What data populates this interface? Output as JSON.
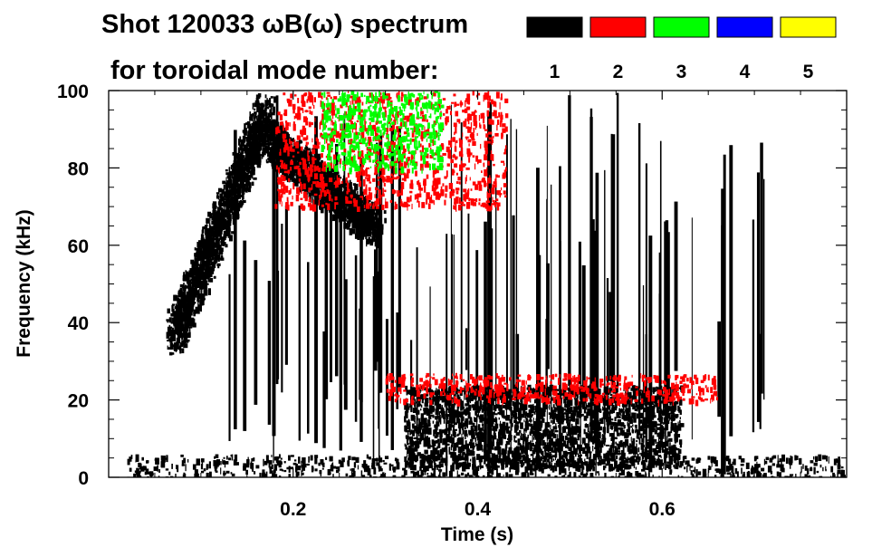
{
  "chart_data": {
    "type": "heatmap",
    "title_line1": "Shot 120033 ωB(ω) spectrum",
    "title_line2": "for toroidal mode number:",
    "xlabel": "Time (s)",
    "ylabel": "Frequency (kHz)",
    "xlim": [
      0.0,
      0.8
    ],
    "ylim": [
      0,
      100
    ],
    "x_ticks": [
      0.2,
      0.4,
      0.6
    ],
    "x_tick_labels": [
      "0.2",
      "0.4",
      "0.6"
    ],
    "y_ticks": [
      0,
      20,
      40,
      60,
      80,
      100
    ],
    "y_tick_labels": [
      "0",
      "20",
      "40",
      "60",
      "80",
      "100"
    ],
    "legend": [
      {
        "label": "1",
        "color": "#000000"
      },
      {
        "label": "2",
        "color": "#ff0000"
      },
      {
        "label": "3",
        "color": "#00ff00"
      },
      {
        "label": "4",
        "color": "#0000ff"
      },
      {
        "label": "5",
        "color": "#ffff00"
      }
    ],
    "legend_placement": "top-right",
    "features": [
      {
        "mode": "1",
        "kind": "chirp",
        "from": [
          0.07,
          37
        ],
        "to": [
          0.17,
          95
        ]
      },
      {
        "mode": "1",
        "kind": "chirp",
        "from": [
          0.17,
          88
        ],
        "to": [
          0.29,
          65
        ]
      },
      {
        "mode": "1",
        "kind": "band",
        "t_range": [
          0.02,
          0.8
        ],
        "f_range": [
          0,
          6
        ]
      },
      {
        "mode": "1",
        "kind": "blob",
        "t_range": [
          0.32,
          0.62
        ],
        "f_range": [
          3,
          24
        ]
      },
      {
        "mode": "1",
        "kind": "vertical-streaks",
        "t_range": [
          0.12,
          0.72
        ],
        "f_range": [
          0,
          100
        ]
      },
      {
        "mode": "2",
        "kind": "region",
        "t_range": [
          0.18,
          0.43
        ],
        "f_range": [
          70,
          100
        ]
      },
      {
        "mode": "2",
        "kind": "band",
        "t_range": [
          0.3,
          0.66
        ],
        "f_range": [
          20,
          27
        ]
      },
      {
        "mode": "3",
        "kind": "region",
        "t_range": [
          0.23,
          0.36
        ],
        "f_range": [
          80,
          100
        ]
      }
    ]
  }
}
